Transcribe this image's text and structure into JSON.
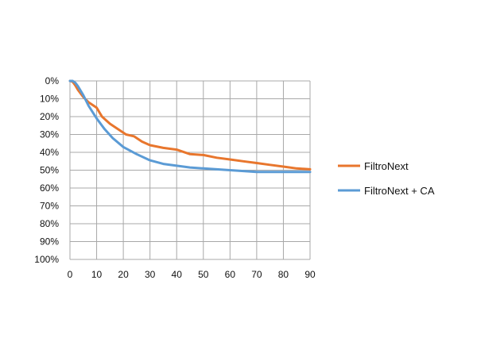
{
  "chart_data": {
    "type": "line",
    "title": "",
    "xlabel": "",
    "ylabel": "",
    "xlim": [
      0,
      90
    ],
    "ylim": [
      0,
      100
    ],
    "y_inverted": true,
    "grid": true,
    "legend_position": "right",
    "x_ticks": [
      "0",
      "10",
      "20",
      "30",
      "40",
      "50",
      "60",
      "70",
      "80",
      "90"
    ],
    "y_ticks": [
      "0%",
      "10%",
      "20%",
      "30%",
      "40%",
      "50%",
      "60%",
      "70%",
      "80%",
      "90%",
      "100%"
    ],
    "series": [
      {
        "name": "FiltroNext",
        "color": "#E8762D",
        "x": [
          0,
          1,
          2,
          3,
          5,
          7,
          10,
          12,
          15,
          18,
          21,
          24,
          27,
          30,
          35,
          40,
          45,
          50,
          55,
          60,
          65,
          70,
          75,
          80,
          85,
          90
        ],
        "y": [
          0,
          0.5,
          2.5,
          5,
          9,
          12,
          15,
          20,
          24,
          27,
          30,
          31,
          34,
          36,
          37.5,
          38.5,
          41,
          41.5,
          43,
          44,
          45,
          46,
          47,
          48,
          49,
          49.5
        ]
      },
      {
        "name": "FiltroNext + CA",
        "color": "#5B9BD5",
        "x": [
          0,
          1,
          2,
          3,
          5,
          7,
          10,
          13,
          16,
          20,
          25,
          30,
          35,
          40,
          45,
          50,
          55,
          60,
          65,
          70,
          75,
          80,
          85,
          90
        ],
        "y": [
          0,
          0,
          1,
          3,
          8,
          14,
          21,
          27,
          32,
          37,
          41,
          44.5,
          46.5,
          47.5,
          48.5,
          49,
          49.5,
          50,
          50.5,
          51,
          51,
          51,
          51,
          51
        ]
      }
    ]
  }
}
